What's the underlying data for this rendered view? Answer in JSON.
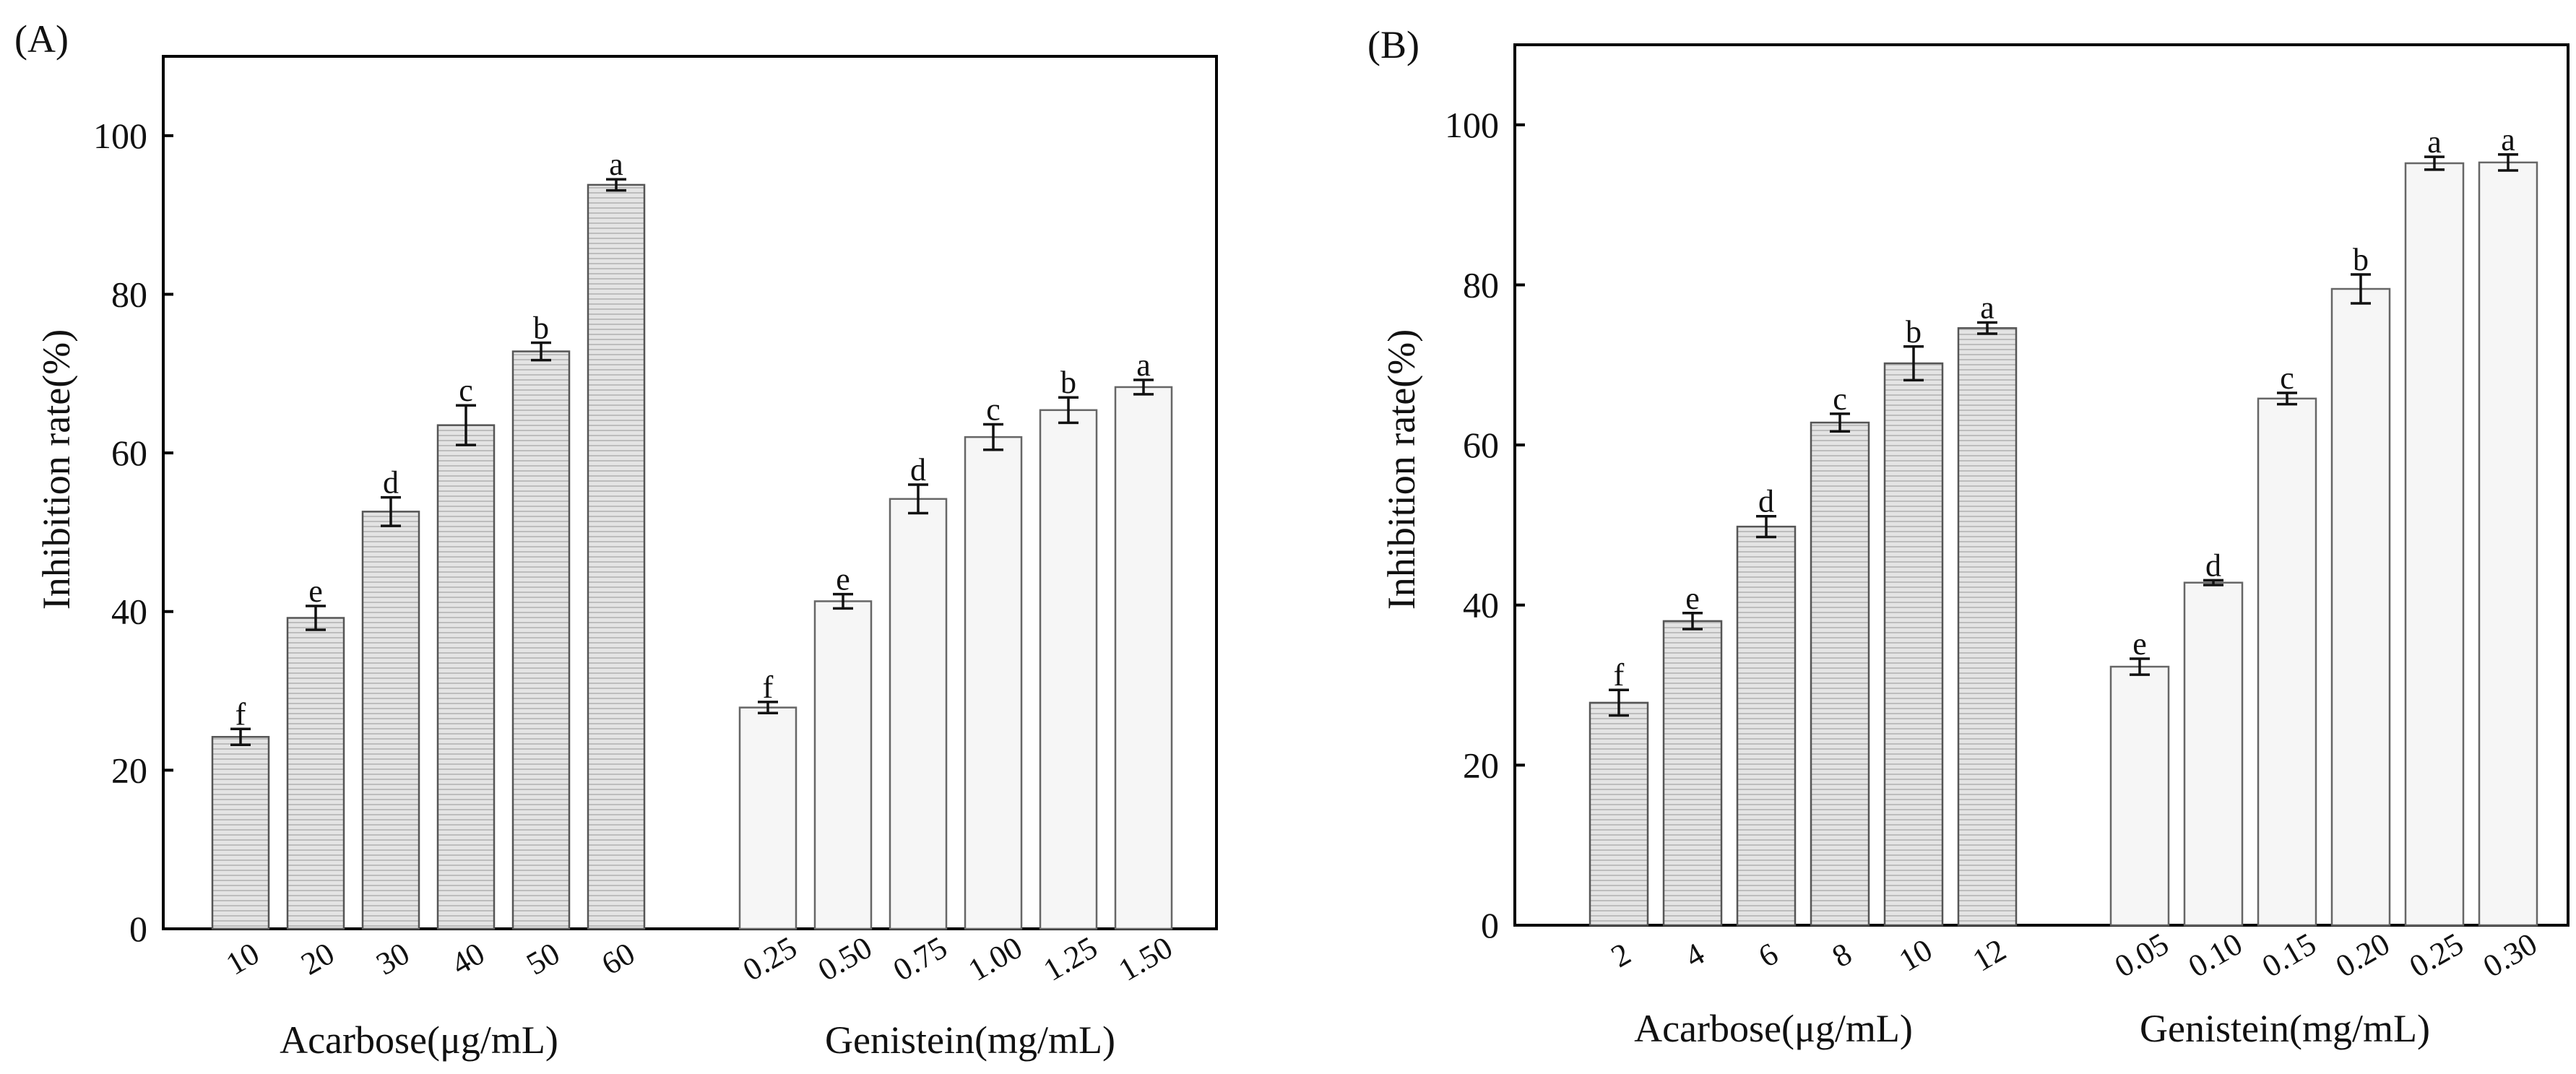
{
  "chart_data": [
    {
      "type": "bar",
      "title": "(A)",
      "ylabel": "Inhibition rate(%)",
      "ylim": [
        0,
        110
      ],
      "yticks": [
        0,
        20,
        40,
        60,
        80,
        100
      ],
      "groups": [
        {
          "name": "Acarbose(μg/mL)",
          "style": "hatched",
          "categories": [
            "10",
            "20",
            "30",
            "40",
            "50",
            "60"
          ],
          "values": [
            24.2,
            39.2,
            52.6,
            63.5,
            72.8,
            93.8
          ],
          "errors": [
            1.0,
            1.5,
            1.8,
            2.5,
            1.1,
            0.7
          ],
          "letters": [
            "f",
            "e",
            "d",
            "c",
            "b",
            "a"
          ]
        },
        {
          "name": "Genistein(mg/mL)",
          "style": "plain",
          "categories": [
            "0.25",
            "0.50",
            "0.75",
            "1.00",
            "1.25",
            "1.50"
          ],
          "values": [
            27.9,
            41.3,
            54.2,
            62.0,
            65.4,
            68.3
          ],
          "errors": [
            0.7,
            0.9,
            1.8,
            1.6,
            1.6,
            0.9
          ],
          "letters": [
            "f",
            "e",
            "d",
            "c",
            "b",
            "a"
          ]
        }
      ]
    },
    {
      "type": "bar",
      "title": "(B)",
      "ylabel": "Inhibition rate(%)",
      "ylim": [
        0,
        110
      ],
      "yticks": [
        0,
        20,
        40,
        60,
        80,
        100
      ],
      "groups": [
        {
          "name": "Acarbose(μg/mL)",
          "style": "hatched",
          "categories": [
            "2",
            "4",
            "6",
            "8",
            "10",
            "12"
          ],
          "values": [
            27.8,
            38.0,
            49.8,
            62.8,
            70.2,
            74.6
          ],
          "errors": [
            1.6,
            1.0,
            1.3,
            1.1,
            2.1,
            0.7
          ],
          "letters": [
            "f",
            "e",
            "d",
            "c",
            "b",
            "a"
          ]
        },
        {
          "name": "Genistein(mg/mL)",
          "style": "plain",
          "categories": [
            "0.05",
            "0.10",
            "0.15",
            "0.20",
            "0.25",
            "0.30"
          ],
          "values": [
            32.3,
            42.8,
            65.8,
            79.5,
            95.2,
            95.3
          ],
          "errors": [
            1.0,
            0.3,
            0.7,
            1.8,
            0.8,
            1.0
          ],
          "letters": [
            "e",
            "d",
            "c",
            "b",
            "a",
            "a"
          ]
        }
      ]
    }
  ]
}
